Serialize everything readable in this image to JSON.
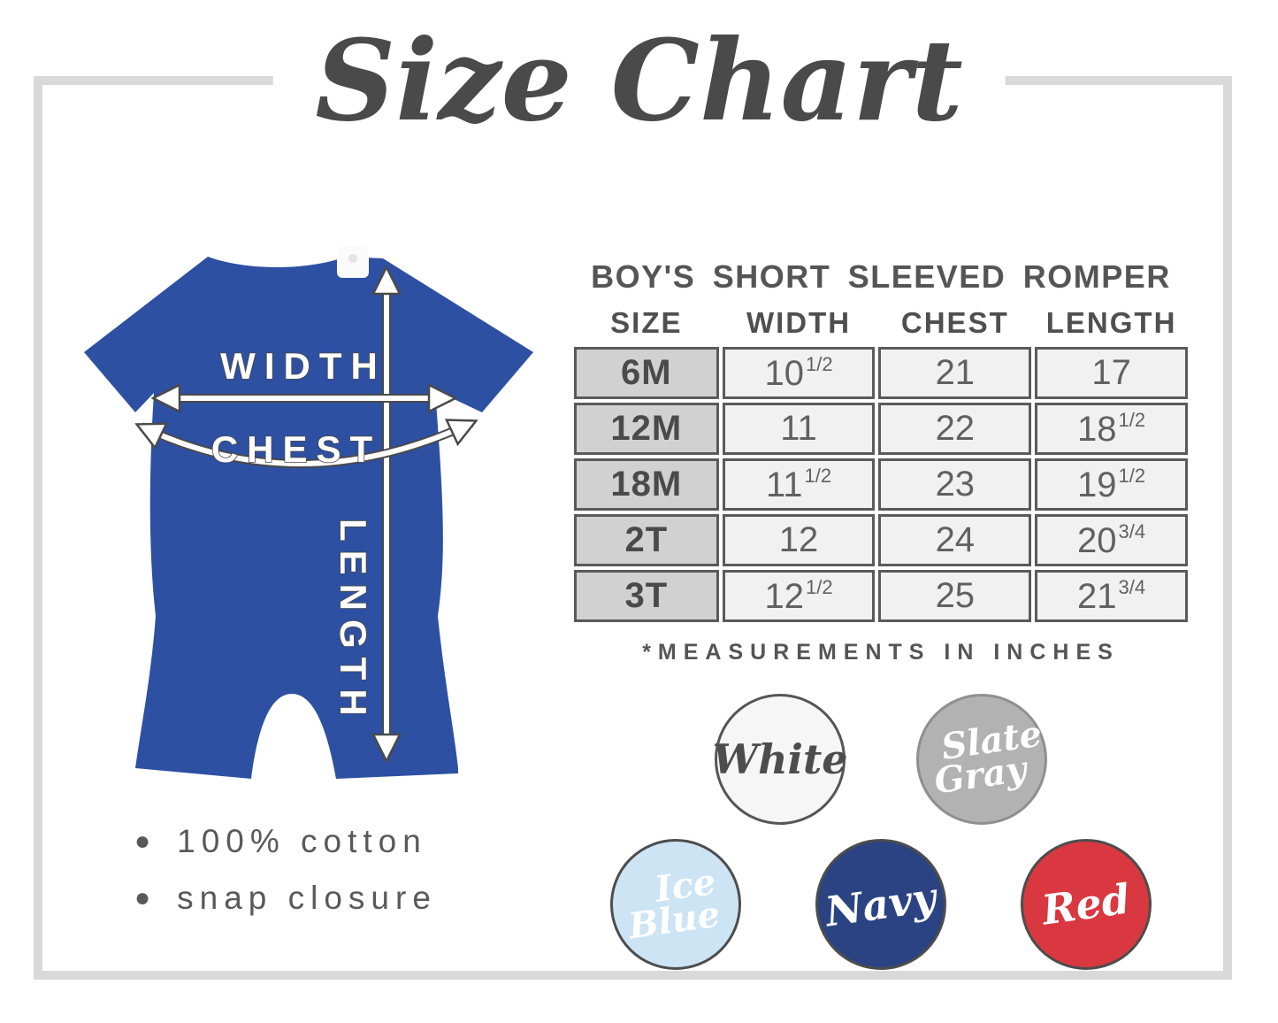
{
  "title": "Size Chart",
  "product_heading": "BOY'S SHORT SLEEVED ROMPER",
  "diagram": {
    "width_label": "WIDTH",
    "chest_label": "CHEST",
    "length_label": "LENGTH",
    "romper_color": "#2d50a2"
  },
  "table": {
    "columns": [
      "SIZE",
      "WIDTH",
      "CHEST",
      "LENGTH"
    ],
    "rows": [
      {
        "size": "6M",
        "cells": [
          {
            "v": "10",
            "f": "1/2"
          },
          {
            "v": "21",
            "f": ""
          },
          {
            "v": "17",
            "f": ""
          }
        ]
      },
      {
        "size": "12M",
        "cells": [
          {
            "v": "11",
            "f": ""
          },
          {
            "v": "22",
            "f": ""
          },
          {
            "v": "18",
            "f": "1/2"
          }
        ]
      },
      {
        "size": "18M",
        "cells": [
          {
            "v": "11",
            "f": "1/2"
          },
          {
            "v": "23",
            "f": ""
          },
          {
            "v": "19",
            "f": "1/2"
          }
        ]
      },
      {
        "size": "2T",
        "cells": [
          {
            "v": "12",
            "f": ""
          },
          {
            "v": "24",
            "f": ""
          },
          {
            "v": "20",
            "f": "3/4"
          }
        ]
      },
      {
        "size": "3T",
        "cells": [
          {
            "v": "12",
            "f": "1/2"
          },
          {
            "v": "25",
            "f": ""
          },
          {
            "v": "21",
            "f": "3/4"
          }
        ]
      }
    ],
    "note": "*MEASUREMENTS IN INCHES"
  },
  "features": [
    "100% cotton",
    "snap closure"
  ],
  "swatches": [
    {
      "name": "White",
      "lines": [
        "White"
      ],
      "fill": "#f6f6f6",
      "text": "#4d4d4d",
      "border": "#555555"
    },
    {
      "name": "Slate Gray",
      "lines": [
        "Slate",
        "Gray"
      ],
      "fill": "#b2b2b2",
      "text": "#ffffff",
      "border": "#8f8f8f"
    },
    {
      "name": "Ice Blue",
      "lines": [
        "Ice",
        "Blue"
      ],
      "fill": "#cde4f5",
      "text": "#ffffff",
      "border": "#4d4d4d"
    },
    {
      "name": "Navy",
      "lines": [
        "Navy"
      ],
      "fill": "#2b4383",
      "text": "#ffffff",
      "border": "#4d4d4d"
    },
    {
      "name": "Red",
      "lines": [
        "Red"
      ],
      "fill": "#d93840",
      "text": "#ffffff",
      "border": "#4d4d4d"
    }
  ],
  "chart_data": {
    "type": "table",
    "title": "BOY'S SHORT SLEEVED ROMPER",
    "columns": [
      "SIZE",
      "WIDTH",
      "CHEST",
      "LENGTH"
    ],
    "rows": [
      [
        "6M",
        "10 1/2",
        "21",
        "17"
      ],
      [
        "12M",
        "11",
        "22",
        "18 1/2"
      ],
      [
        "18M",
        "11 1/2",
        "23",
        "19 1/2"
      ],
      [
        "2T",
        "12",
        "24",
        "20 3/4"
      ],
      [
        "3T",
        "12 1/2",
        "25",
        "21 3/4"
      ]
    ],
    "units": "inches",
    "note": "*MEASUREMENTS IN INCHES",
    "colors_offered": [
      "White",
      "Slate Gray",
      "Ice Blue",
      "Navy",
      "Red"
    ],
    "features": [
      "100% cotton",
      "snap closure"
    ]
  }
}
